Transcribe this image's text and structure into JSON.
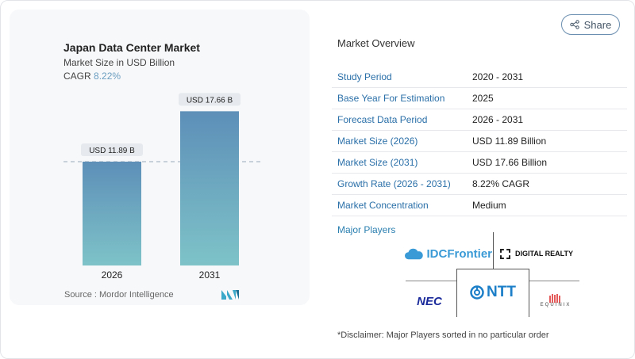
{
  "header": {
    "share_label": "Share",
    "share_icon": "share-icon"
  },
  "chart_data": {
    "type": "bar",
    "title": "Japan Data Center Market",
    "subtitle": "Market Size in USD Billion",
    "cagr_label": "CAGR",
    "cagr_value": "8.22%",
    "categories": [
      "2026",
      "2031"
    ],
    "values": [
      11.89,
      17.66
    ],
    "data_labels": [
      "USD 11.89 B",
      "USD 17.66 B"
    ],
    "reference_line": "dashed at 2026 value",
    "colors": {
      "bar_top": "#5d8fb8",
      "bar_bottom": "#7ec3c8",
      "accent": "#6a9ec0"
    },
    "source": "Source :  Mordor Intelligence"
  },
  "overview": {
    "title": "Market Overview",
    "rows": [
      {
        "label": "Study Period",
        "value": "2020 - 2031"
      },
      {
        "label": "Base Year For Estimation",
        "value": "2025"
      },
      {
        "label": "Forecast Data Period",
        "value": "2026 - 2031"
      },
      {
        "label": "Market Size (2026)",
        "value": "USD 11.89 Billion"
      },
      {
        "label": "Market Size (2031)",
        "value": "USD 17.66 Billion"
      },
      {
        "label": "Growth Rate (2026 - 2031)",
        "value": "8.22% CAGR"
      },
      {
        "label": "Market Concentration",
        "value": "Medium"
      }
    ]
  },
  "players": {
    "title": "Major Players",
    "logos": [
      "IDCFrontier",
      "DIGITAL REALTY",
      "NEC",
      "NTT",
      "EQUINIX"
    ],
    "disclaimer": "*Disclaimer: Major Players sorted in no particular order"
  }
}
